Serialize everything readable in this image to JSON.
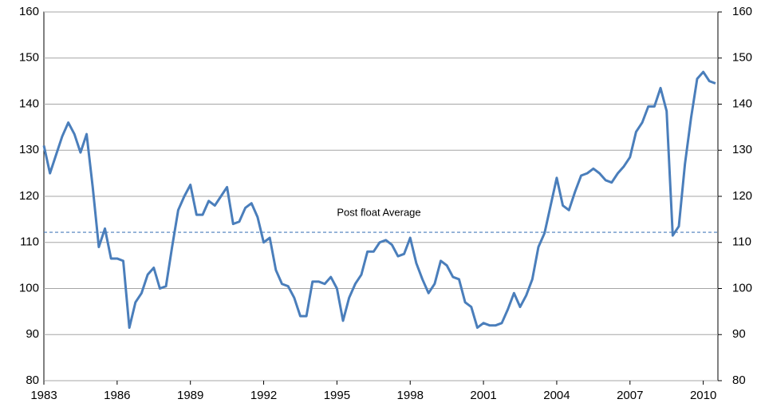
{
  "chart_data": {
    "type": "line",
    "x": [
      1983,
      1983.25,
      1983.5,
      1983.75,
      1984,
      1984.25,
      1984.5,
      1984.75,
      1985,
      1985.25,
      1985.5,
      1985.75,
      1986,
      1986.25,
      1986.5,
      1986.75,
      1987,
      1987.25,
      1987.5,
      1987.75,
      1988,
      1988.25,
      1988.5,
      1988.75,
      1989,
      1989.25,
      1989.5,
      1989.75,
      1990,
      1990.25,
      1990.5,
      1990.75,
      1991,
      1991.25,
      1991.5,
      1991.75,
      1992,
      1992.25,
      1992.5,
      1992.75,
      1993,
      1993.25,
      1993.5,
      1993.75,
      1994,
      1994.25,
      1994.5,
      1994.75,
      1995,
      1995.25,
      1995.5,
      1995.75,
      1996,
      1996.25,
      1996.5,
      1996.75,
      1997,
      1997.25,
      1997.5,
      1997.75,
      1998,
      1998.25,
      1998.5,
      1998.75,
      1999,
      1999.25,
      1999.5,
      1999.75,
      2000,
      2000.25,
      2000.5,
      2000.75,
      2001,
      2001.25,
      2001.5,
      2001.75,
      2002,
      2002.25,
      2002.5,
      2002.75,
      2003,
      2003.25,
      2003.5,
      2003.75,
      2004,
      2004.25,
      2004.5,
      2004.75,
      2005,
      2005.25,
      2005.5,
      2005.75,
      2006,
      2006.25,
      2006.5,
      2006.75,
      2007,
      2007.25,
      2007.5,
      2007.75,
      2008,
      2008.25,
      2008.5,
      2008.75,
      2009,
      2009.25,
      2009.5,
      2009.75,
      2010,
      2010.25,
      2010.5
    ],
    "series": [
      {
        "color": "#4a7ebb",
        "values": [
          131,
          125,
          129,
          133,
          136,
          133.5,
          129.5,
          133.5,
          122,
          109,
          113,
          106.5,
          106.5,
          106,
          91.5,
          97,
          99,
          103,
          104.5,
          100,
          100.5,
          109,
          117,
          120,
          122.5,
          116,
          116,
          119,
          118,
          120,
          122,
          114,
          114.5,
          117.5,
          118.5,
          115.5,
          110,
          111,
          104,
          101,
          100.5,
          98,
          94,
          94,
          101.5,
          101.5,
          101,
          102.5,
          100,
          93,
          98,
          101,
          103,
          108,
          108,
          110,
          110.5,
          109.5,
          107,
          107.5,
          111,
          105.5,
          102,
          99,
          101,
          106,
          105,
          102.5,
          102,
          97,
          96,
          91.5,
          92.5,
          92,
          92,
          92.5,
          95.5,
          99,
          96,
          98.5,
          102,
          109,
          112,
          118,
          124,
          118,
          117,
          121,
          124.5,
          125,
          126,
          125,
          123.5,
          123,
          125,
          126.5,
          128.5,
          134,
          136,
          139.5,
          139.5,
          143.5,
          138.5,
          111.5,
          113.5,
          127,
          137,
          145.5,
          147,
          145,
          144.5
        ]
      }
    ],
    "xlim": [
      1983,
      2010.6
    ],
    "xticks": [
      1983,
      1986,
      1989,
      1992,
      1995,
      1998,
      2001,
      2004,
      2007,
      2010
    ],
    "ylim": [
      80,
      160
    ],
    "yticks": [
      80,
      90,
      100,
      110,
      120,
      130,
      140,
      150,
      160
    ],
    "y2lim": [
      80,
      160
    ],
    "y2ticks": [
      80,
      90,
      100,
      110,
      120,
      130,
      140,
      150,
      160
    ],
    "reference_line": {
      "value": 112.2,
      "label": "Post float Average",
      "color": "#4a7ebb"
    },
    "grid": true
  }
}
